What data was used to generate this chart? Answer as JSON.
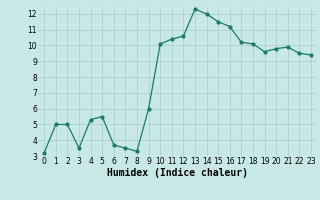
{
  "x": [
    0,
    1,
    2,
    3,
    4,
    5,
    6,
    7,
    8,
    9,
    10,
    11,
    12,
    13,
    14,
    15,
    16,
    17,
    18,
    19,
    20,
    21,
    22,
    23
  ],
  "y": [
    3.2,
    5.0,
    5.0,
    3.5,
    5.3,
    5.5,
    3.7,
    3.5,
    3.3,
    6.0,
    10.1,
    10.4,
    10.6,
    12.3,
    12.0,
    11.5,
    11.2,
    10.2,
    10.1,
    9.6,
    9.8,
    9.9,
    9.5,
    9.4
  ],
  "line_color": "#1a7a6e",
  "bg_color": "#c8e8e5",
  "grid_color": "#a8ccc9",
  "xlabel": "Humidex (Indice chaleur)",
  "ylim": [
    3,
    12.5
  ],
  "xlim": [
    -0.5,
    23.5
  ],
  "yticks": [
    3,
    4,
    5,
    6,
    7,
    8,
    9,
    10,
    11,
    12
  ],
  "xticks": [
    0,
    1,
    2,
    3,
    4,
    5,
    6,
    7,
    8,
    9,
    10,
    11,
    12,
    13,
    14,
    15,
    16,
    17,
    18,
    19,
    20,
    21,
    22,
    23
  ],
  "tick_fontsize": 5.5,
  "xlabel_fontsize": 7,
  "marker": "o",
  "markersize": 2.0,
  "linewidth": 0.9
}
